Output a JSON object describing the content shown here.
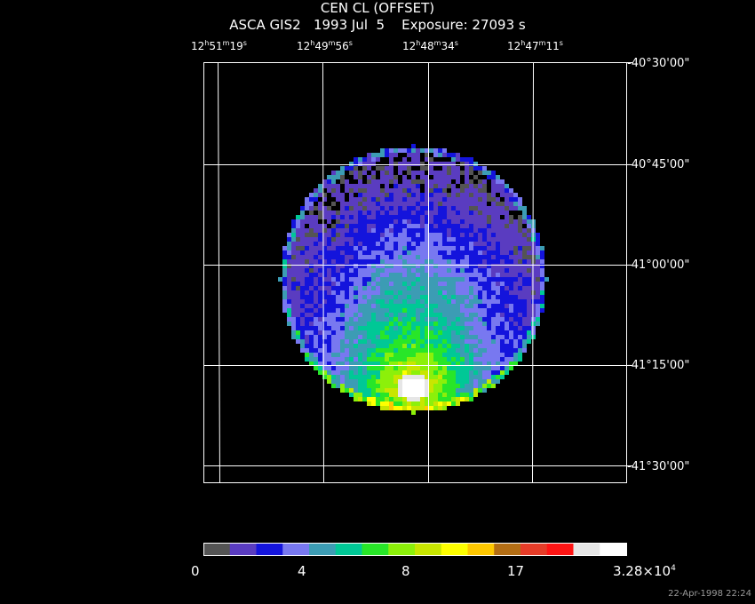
{
  "title": "CEN CL (OFFSET)",
  "subtitle": "ASCA GIS2   1993 Jul  5    Exposure: 27093 s",
  "ra_labels": [
    {
      "h": "12",
      "m": "51",
      "s": "19"
    },
    {
      "h": "12",
      "m": "49",
      "s": "56"
    },
    {
      "h": "12",
      "m": "48",
      "s": "34"
    },
    {
      "h": "12",
      "m": "47",
      "s": "11"
    }
  ],
  "dec_labels": [
    "-40°30'00\"",
    "-40°45'00\"",
    "-41°00'00\"",
    "-41°15'00\"",
    "-41°30'00\""
  ],
  "colorbar": {
    "colors": [
      "#545454",
      "#5a3cc0",
      "#1414dc",
      "#7878f0",
      "#3c9cb4",
      "#00c896",
      "#28e628",
      "#8cf00a",
      "#c8e600",
      "#ffff00",
      "#ffc800",
      "#b46e14",
      "#e63c28",
      "#ff1414",
      "#e6e6e6",
      "#ffffff"
    ],
    "tick_labels": [
      "0",
      "4",
      "8",
      "17"
    ],
    "max_label": "3.28×10",
    "max_exp": "4"
  },
  "timestamp": "22-Apr-1998 22:24"
}
